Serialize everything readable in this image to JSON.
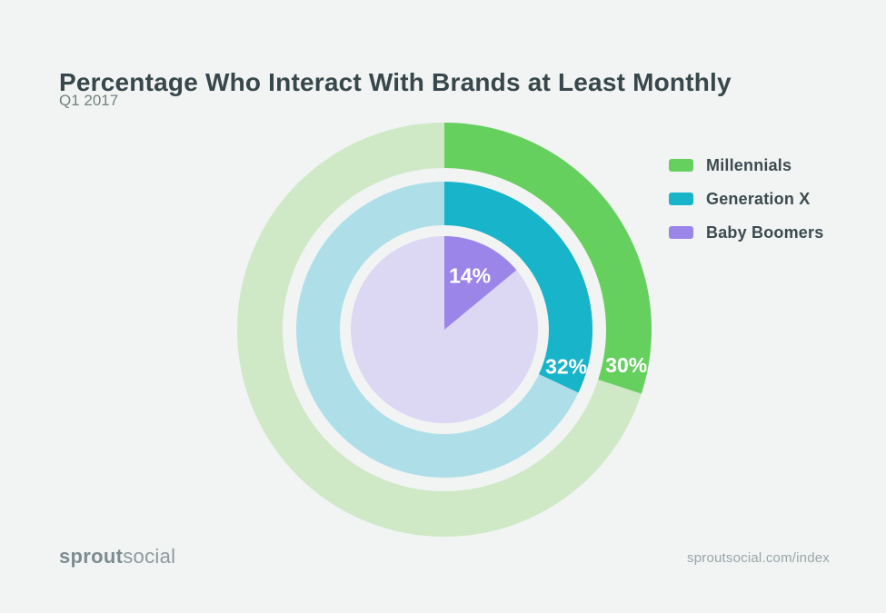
{
  "page": {
    "background": "#f1f4f3"
  },
  "chart_data": {
    "type": "pie",
    "variant": "concentric-donut",
    "title": "Percentage Who Interact With Brands at Least Monthly",
    "subtitle": "Q1 2017",
    "unit": "percent",
    "start_angle_deg": 0,
    "direction": "clockwise",
    "legend_position": "right",
    "series": [
      {
        "name": "Millennials",
        "value": 30,
        "label": "30%",
        "ring": "outer",
        "color": "#66d05f",
        "track_color": "#cfe9c7"
      },
      {
        "name": "Generation X",
        "value": 32,
        "label": "32%",
        "ring": "middle",
        "color": "#18b4c9",
        "track_color": "#aedfe8"
      },
      {
        "name": "Baby Boomers",
        "value": 14,
        "label": "14%",
        "ring": "inner",
        "color": "#9b85e8",
        "track_color": "#dcd7f3"
      }
    ]
  },
  "footer": {
    "logo_bold": "sprout",
    "logo_regular": "social",
    "site_url": "sproutsocial.com/index"
  }
}
